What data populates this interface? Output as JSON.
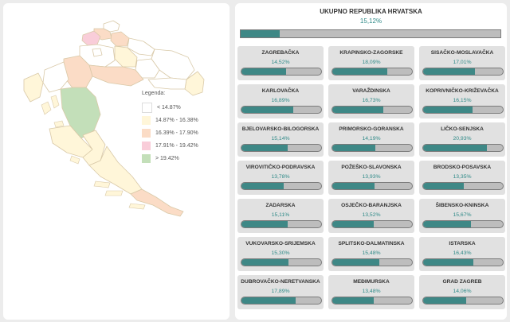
{
  "legend": {
    "title": "Legenda:",
    "items": [
      {
        "label": "< 14.87%",
        "color": "#ffffff"
      },
      {
        "label": "14.87% - 16.38%",
        "color": "#fff6d9"
      },
      {
        "label": "16.39% - 17.90%",
        "color": "#fbdcc6"
      },
      {
        "label": "17.91% - 19.42%",
        "color": "#f9cdd9"
      },
      {
        "label": "> 19.42%",
        "color": "#c3dfb9"
      }
    ]
  },
  "total": {
    "name": "UKUPNO REPUBLIKA HRVATSKA",
    "value": "15,12%",
    "fraction": 0.1512
  },
  "counties": [
    {
      "name": "ZAGREBAČKA",
      "value": "14,52%",
      "fraction": 0.1452
    },
    {
      "name": "KRAPINSKO-ZAGORSKE",
      "value": "18,09%",
      "fraction": 0.1809
    },
    {
      "name": "SISAČKO-MOSLAVAČKA",
      "value": "17,01%",
      "fraction": 0.1701
    },
    {
      "name": "KARLOVAČKA",
      "value": "16,89%",
      "fraction": 0.1689
    },
    {
      "name": "VARAŽDINSKA",
      "value": "16,73%",
      "fraction": 0.1673
    },
    {
      "name": "KOPRIVNIČKO-KRIŽEVAČKA",
      "value": "16,15%",
      "fraction": 0.1615
    },
    {
      "name": "BJELOVARSKO-BILOGORSKA",
      "value": "15,14%",
      "fraction": 0.1514
    },
    {
      "name": "PRIMORSKO-GORANSKA",
      "value": "14,19%",
      "fraction": 0.1419
    },
    {
      "name": "LIČKO-SENJSKA",
      "value": "20,93%",
      "fraction": 0.2093
    },
    {
      "name": "VIROVITIČKO-PODRAVSKA",
      "value": "13,78%",
      "fraction": 0.1378
    },
    {
      "name": "POŽEŠKO-SLAVONSKA",
      "value": "13,93%",
      "fraction": 0.1393
    },
    {
      "name": "BRODSKO-POSAVSKA",
      "value": "13,35%",
      "fraction": 0.1335
    },
    {
      "name": "ZADARSKA",
      "value": "15,11%",
      "fraction": 0.1511
    },
    {
      "name": "OSJEČKO-BARANJSKA",
      "value": "13,52%",
      "fraction": 0.1352
    },
    {
      "name": "ŠIBENSKO-KNINSKA",
      "value": "15,67%",
      "fraction": 0.1567
    },
    {
      "name": "VUKOVARSKO-SRIJEMSKA",
      "value": "15,30%",
      "fraction": 0.153
    },
    {
      "name": "SPLITSKO-DALMATINSKA",
      "value": "15,48%",
      "fraction": 0.1548
    },
    {
      "name": "ISTARSKA",
      "value": "16,43%",
      "fraction": 0.1643
    },
    {
      "name": "DUBROVAČKO-NERETVANSKA",
      "value": "17,89%",
      "fraction": 0.1789
    },
    {
      "name": "MEĐIMURSKA",
      "value": "13,48%",
      "fraction": 0.1348
    },
    {
      "name": "GRAD ZAGREB",
      "value": "14,06%",
      "fraction": 0.1406
    }
  ],
  "colors": {
    "bar_fill": "#3e8886",
    "bar_track": "#bdbdbd",
    "value_text": "#2f8a88"
  }
}
